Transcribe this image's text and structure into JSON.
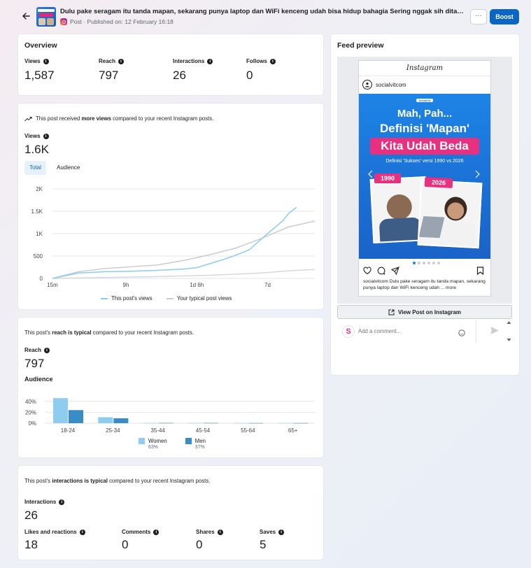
{
  "header": {
    "title": "Dulu pake seragam itu tanda mapan, sekarang punya laptop dan WiFi kenceng udah bisa hidup bahagia Sering nggak sih ditanya sa...",
    "subtitle": "Post · Published on: 12 February 16:18",
    "more_label": "···",
    "boost_label": "Boost",
    "back_icon": "arrow-left-icon",
    "platform_icon": "instagram-icon"
  },
  "overview": {
    "title": "Overview",
    "metrics": [
      {
        "label": "Views",
        "value": "1,587"
      },
      {
        "label": "Reach",
        "value": "797"
      },
      {
        "label": "Interactions",
        "value": "26"
      },
      {
        "label": "Follows",
        "value": "0"
      }
    ]
  },
  "views_card": {
    "note_prefix": "This post received ",
    "note_bold": "more views",
    "note_suffix": " compared to your recent Instagram posts.",
    "label": "Views",
    "value": "1.6K",
    "tabs": [
      "Total",
      "Audience"
    ],
    "legend": [
      "This post's views",
      "Your typical post views"
    ]
  },
  "reach_card": {
    "note_prefix": "This post's ",
    "note_bold": "reach is typical",
    "note_suffix": " compared to your recent Instagram posts.",
    "label": "Reach",
    "value": "797",
    "audience_title": "Audience",
    "legend": [
      {
        "name": "Women",
        "pct": "63%"
      },
      {
        "name": "Men",
        "pct": "37%"
      }
    ]
  },
  "interactions_card": {
    "note_prefix": "This post's ",
    "note_bold": "interactions is typical",
    "note_suffix": " compared to your recent Instagram posts.",
    "label": "Interactions",
    "value": "26",
    "metrics": [
      {
        "label": "Likes and reactions",
        "value": "18"
      },
      {
        "label": "Comments",
        "value": "0"
      },
      {
        "label": "Shares",
        "value": "0"
      },
      {
        "label": "Saves",
        "value": "5"
      }
    ]
  },
  "feed_preview": {
    "title": "Feed preview",
    "app_name": "Instagram",
    "account": "socialvitcom",
    "promo": {
      "brand": "SocialVit",
      "line1": "Mah, Pah...",
      "line2": "Definisi 'Mapan'",
      "line3": "Kita Udah Beda",
      "line4": "Definisi 'Sukses' versi 1990 vs 2026",
      "year1": "1990",
      "year2": "2026"
    },
    "caption": "socialvitcom Dulu pake seragam itu tanda mapan, sekarang punya laptop dan WiFi kenceng udah ... more",
    "view_button": "View Post on Instagram",
    "comment_placeholder": "Add a comment...",
    "colors": {
      "accent": "#0a66c2",
      "promo_blue": "#1d84e6",
      "promo_pink": "#e7307f"
    }
  },
  "chart_data": [
    {
      "type": "line",
      "title": "",
      "xlabel": "",
      "ylabel": "",
      "x_ticks": [
        "15m",
        "9h",
        "1d 6h",
        "7d"
      ],
      "y_ticks": [
        "0",
        "500",
        "1K",
        "1.5K",
        "2K"
      ],
      "ylim": [
        0,
        2000
      ],
      "grid": true,
      "legend_position": "bottom",
      "series": [
        {
          "name": "This post's views",
          "color": "#8ecaf0",
          "x": [
            0,
            0.1,
            0.2,
            0.3,
            0.4,
            0.5,
            0.55,
            0.6,
            0.65,
            0.7,
            0.75,
            0.8,
            0.85,
            0.88,
            0.9,
            0.93
          ],
          "values": [
            0,
            120,
            150,
            160,
            180,
            210,
            240,
            330,
            420,
            520,
            640,
            900,
            1150,
            1300,
            1450,
            1587
          ]
        },
        {
          "name": "Your typical post views",
          "color": "#c9cdd3",
          "x": [
            0,
            0.1,
            0.2,
            0.3,
            0.4,
            0.5,
            0.6,
            0.7,
            0.8,
            0.9,
            1.0
          ],
          "values": [
            0,
            150,
            220,
            260,
            300,
            400,
            530,
            680,
            900,
            1150,
            1280
          ]
        },
        {
          "name": "",
          "color": "#d5d8dd",
          "x": [
            0,
            0.2,
            0.4,
            0.6,
            0.8,
            0.9,
            1.0
          ],
          "values": [
            0,
            20,
            40,
            70,
            120,
            170,
            200
          ]
        }
      ]
    },
    {
      "type": "bar",
      "title": "Audience",
      "categories": [
        "18-24",
        "25-34",
        "35-44",
        "45-54",
        "55-64",
        "65+"
      ],
      "y_ticks": [
        "0%",
        "20%",
        "40%"
      ],
      "ylim": [
        0,
        50
      ],
      "series": [
        {
          "name": "Women",
          "color": "#8ecdf0",
          "values": [
            46,
            11,
            0.5,
            0.5,
            0.3,
            0.3
          ]
        },
        {
          "name": "Men",
          "color": "#3a8cc6",
          "values": [
            24,
            9,
            0.5,
            0.5,
            0.3,
            0.3
          ]
        }
      ]
    }
  ]
}
